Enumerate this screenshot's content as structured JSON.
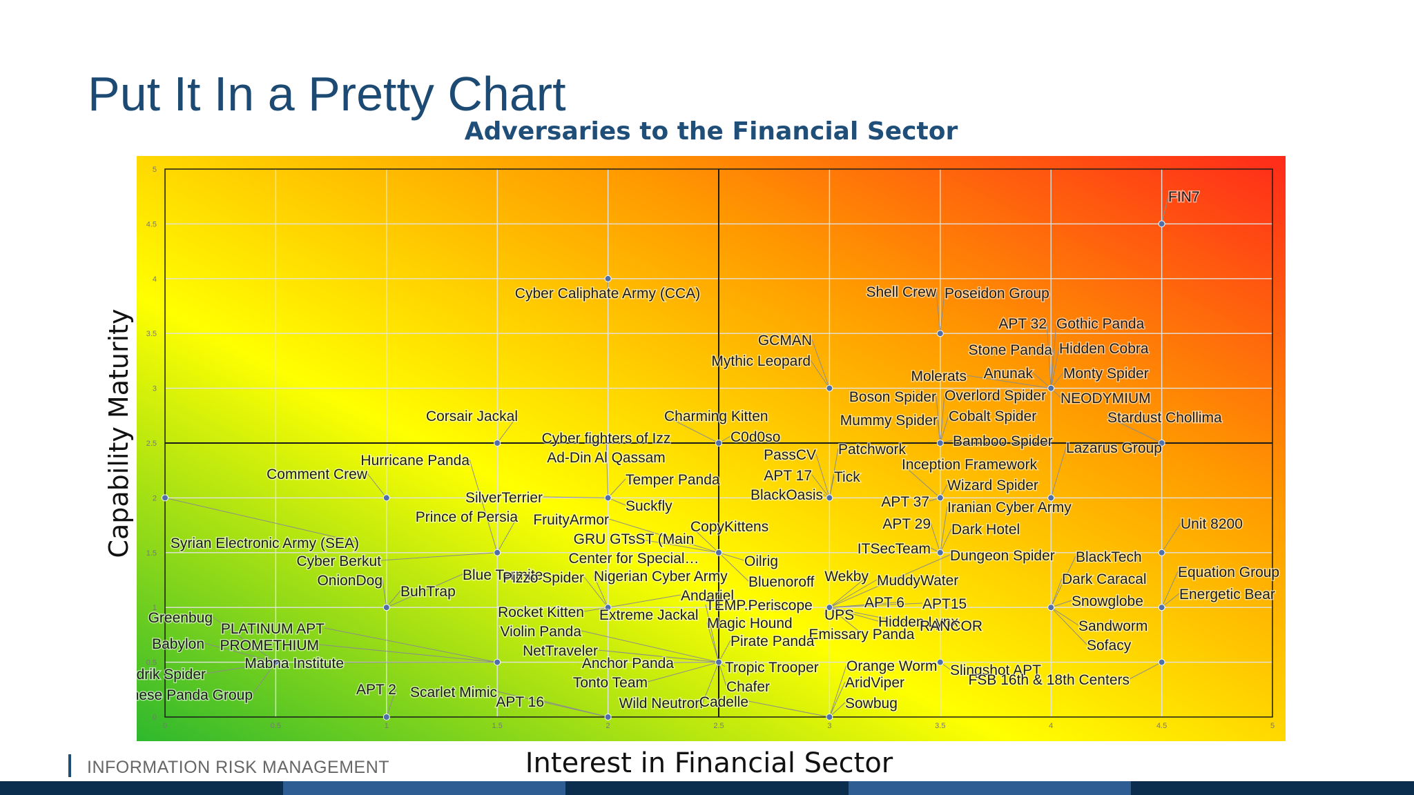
{
  "slide": {
    "title": "Put It In a Pretty Chart",
    "footer": "INFORMATION RISK MANAGEMENT"
  },
  "colors": {
    "title": "#1c4a73",
    "chart_title": "#1f4e79",
    "gradient": [
      "#2eb82e",
      "#ffff00",
      "#ff9900",
      "#ff2a1a"
    ],
    "points": "#4f6fa8",
    "leaders": "#8c8c8c",
    "footer_dark": "#0b2e4f",
    "footer_mid": "#2e5d93"
  },
  "chart_data": {
    "type": "scatter",
    "title": "Adversaries to the Financial Sector",
    "xlabel": "Interest in Financial Sector",
    "ylabel": "Capability Maturity",
    "xlim": [
      0,
      5
    ],
    "ylim": [
      0,
      5
    ],
    "xticks": [
      "0",
      "0.5",
      "1",
      "1.5",
      "2",
      "2.5",
      "3",
      "3.5",
      "4",
      "4.5",
      "5"
    ],
    "yticks": [
      "0",
      "0.5",
      "1",
      "1.5",
      "2",
      "2.5",
      "3",
      "3.5",
      "4",
      "4.5",
      "5"
    ],
    "grid": true,
    "quadrant_lines": {
      "x": 2.5,
      "y": 2.5
    },
    "background": "green-yellow-orange-red diagonal gradient",
    "points": [
      {
        "x": 4.5,
        "y": 4.5,
        "labels": [
          "FIN7"
        ]
      },
      {
        "x": 2,
        "y": 4,
        "labels": [
          "Cyber Caliphate Army (CCA)"
        ]
      },
      {
        "x": 3.5,
        "y": 3.5,
        "labels": [
          "Shell Crew",
          "Poseidon Group"
        ]
      },
      {
        "x": 3,
        "y": 3,
        "labels": [
          "GCMAN",
          "Mythic Leopard"
        ]
      },
      {
        "x": 4,
        "y": 3,
        "labels": [
          "APT 32",
          "Gothic Panda",
          "Stone Panda",
          "Hidden Cobra",
          "Anunak",
          "Monty Spider",
          "Molerats",
          "NEODYMIUM"
        ]
      },
      {
        "x": 1.5,
        "y": 2.5,
        "labels": [
          "Corsair Jackal"
        ]
      },
      {
        "x": 2.5,
        "y": 2.5,
        "labels": [
          "Charming Kitten",
          "C0d0so"
        ]
      },
      {
        "x": 3.5,
        "y": 2.5,
        "labels": [
          "Boson Spider",
          "Overlord Spider",
          "Mummy Spider",
          "Cobalt Spider",
          "Bamboo Spider"
        ]
      },
      {
        "x": 4.5,
        "y": 2.5,
        "labels": [
          "Stardust Chollima"
        ]
      },
      {
        "x": 0,
        "y": 2,
        "labels": [
          "Syrian Electronic Army (SEA)"
        ]
      },
      {
        "x": 1,
        "y": 2,
        "labels": [
          "Comment Crew"
        ]
      },
      {
        "x": 2,
        "y": 2,
        "labels": [
          "Cyber fighters of Izz Ad-Din Al Qassam",
          "Temper Panda",
          "SilverTerrier",
          "Suckfly"
        ]
      },
      {
        "x": 3,
        "y": 2,
        "labels": [
          "PassCV",
          "APT 17",
          "BlackOasis",
          "Patchwork",
          "Tick"
        ]
      },
      {
        "x": 3.5,
        "y": 2,
        "labels": [
          "Inception Framework",
          "Wizard Spider",
          "APT 37"
        ]
      },
      {
        "x": 4,
        "y": 2,
        "labels": [
          "Lazarus Group"
        ]
      },
      {
        "x": 1.5,
        "y": 1.5,
        "labels": [
          "Hurricane Panda",
          "Prince of Persia",
          "Cyber Berkut"
        ]
      },
      {
        "x": 2.5,
        "y": 1.5,
        "labels": [
          "FruityArmor",
          "GRU GTsST (Main Center for Special…",
          "CopyKittens",
          "Oilrig",
          "Bluenoroff"
        ]
      },
      {
        "x": 3.5,
        "y": 1.5,
        "labels": [
          "Iranian Cyber Army",
          "APT 29",
          "Dark Hotel",
          "ITSecTeam"
        ]
      },
      {
        "x": 4.5,
        "y": 1.5,
        "labels": [
          "Unit 8200"
        ]
      },
      {
        "x": 1,
        "y": 1,
        "labels": [
          "OnionDog",
          "Blue Termite",
          "BuhTrap"
        ]
      },
      {
        "x": 2,
        "y": 1,
        "labels": [
          "Pizzo Spider",
          "Nigerian Cyber Army",
          "Andariel",
          "Rocket Kitten",
          "Extreme Jackal"
        ]
      },
      {
        "x": 3,
        "y": 1,
        "labels": [
          "Wekby",
          "MuddyWater",
          "APT 6",
          "APT15",
          "UPS",
          "Hidden Lynx",
          "RANCOR",
          "Emissary Panda",
          "Dungeon Spider"
        ]
      },
      {
        "x": 4,
        "y": 1,
        "labels": [
          "BlackTech",
          "Dark Caracal",
          "Snowglobe",
          "Sandworm",
          "Sofacy"
        ]
      },
      {
        "x": 4.5,
        "y": 1,
        "labels": [
          "Equation Group",
          "Energetic Bear"
        ]
      },
      {
        "x": 0.5,
        "y": 0.5,
        "labels": [
          "Greenbug",
          "Babylon",
          "Indrik Spider",
          "Chinese Panda Group"
        ]
      },
      {
        "x": 1.5,
        "y": 0.5,
        "labels": [
          "PLATINUM APT",
          "PROMETHIUM",
          "Mabna Institute"
        ]
      },
      {
        "x": 2.5,
        "y": 0.5,
        "labels": [
          "TEMP.Periscope",
          "Magic Hound",
          "Pirate Panda",
          "Violin Panda",
          "NetTraveler",
          "Anchor Panda",
          "Tonto Team",
          "Tropic Trooper",
          "Chafer",
          "Wild Neutron"
        ]
      },
      {
        "x": 3,
        "y": 0,
        "labels": [
          "Orange Worm",
          "AridViper",
          "Cadelle",
          "Sowbug"
        ]
      },
      {
        "x": 3.5,
        "y": 0.5,
        "labels": [
          "Slingshot APT"
        ]
      },
      {
        "x": 4.5,
        "y": 0.5,
        "labels": [
          "FSB 16th & 18th Centers"
        ]
      },
      {
        "x": 1,
        "y": 0,
        "labels": [
          "APT 2"
        ]
      },
      {
        "x": 2,
        "y": 0,
        "labels": [
          "Scarlet Mimic",
          "APT 16"
        ]
      }
    ]
  }
}
